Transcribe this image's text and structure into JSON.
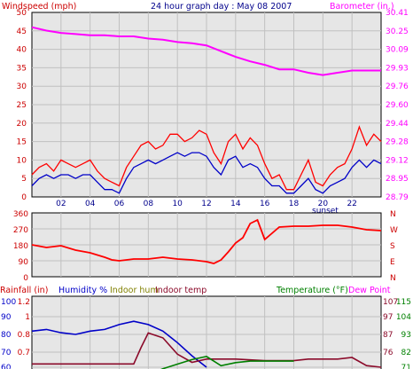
{
  "colors": {
    "panel_bg": "#e6e6e6",
    "grid": "#c0c0c0",
    "wind_gust": "#ff0000",
    "wind_avg": "#0000c8",
    "barometer": "#ff00ff",
    "direction": "#ff0000",
    "humidity": "#0000c8",
    "indoor_hum": "#808000",
    "indoor_temp": "#8b0a2a",
    "temperature": "#008000",
    "dew_point": "#ff00ff",
    "rainfall": "#ff0000"
  },
  "header": {
    "title": "24 hour graph day : May 08 2007",
    "left_label": "Windspeed (mph)",
    "right_label": "Barometer (in.)"
  },
  "bottom_header": {
    "rainfall": "Rainfall (in)",
    "humidity": "Humidity %",
    "indoor_hum": "Indoor hum",
    "indoor_temp": "Indoor temp",
    "temperature": "Temperature (°F)",
    "dew_point": "Dew Point"
  },
  "chart_data": [
    {
      "type": "line",
      "xlim": [
        0,
        24
      ],
      "x_ticks": [
        "02",
        "04",
        "06",
        "08",
        "10",
        "12",
        "14",
        "16",
        "18",
        "20",
        "22"
      ],
      "annotation": "sunset",
      "annotation_x": 20,
      "left_axis": {
        "label": "Windspeed (mph)",
        "ylim": [
          0,
          50
        ],
        "ticks": [
          "50",
          "45",
          "40",
          "35",
          "30",
          "25",
          "20",
          "15",
          "10",
          "5",
          "0"
        ]
      },
      "right_axis": {
        "label": "Barometer (in.)",
        "ylim": [
          28.79,
          30.41
        ],
        "ticks": [
          "30.41",
          "30.25",
          "30.09",
          "29.93",
          "29.76",
          "29.60",
          "29.44",
          "29.28",
          "29.12",
          "28.95",
          "28.79"
        ]
      },
      "series": [
        {
          "name": "Barometer (in.)",
          "axis": "right",
          "x": [
            0,
            1,
            2,
            3,
            4,
            5,
            6,
            7,
            8,
            9,
            10,
            11,
            12,
            13,
            14,
            15,
            16,
            17,
            18,
            19,
            20,
            21,
            22,
            23,
            24
          ],
          "values": [
            30.28,
            30.25,
            30.23,
            30.22,
            30.21,
            30.21,
            30.2,
            30.2,
            30.18,
            30.17,
            30.15,
            30.14,
            30.12,
            30.07,
            30.02,
            29.98,
            29.95,
            29.91,
            29.91,
            29.88,
            29.86,
            29.88,
            29.9,
            29.9,
            29.9
          ]
        },
        {
          "name": "Wind gust (mph)",
          "axis": "left",
          "x": [
            0,
            0.5,
            1,
            1.5,
            2,
            2.5,
            3,
            3.5,
            4,
            4.5,
            5,
            5.5,
            6,
            6.5,
            7,
            7.5,
            8,
            8.5,
            9,
            9.5,
            10,
            10.5,
            11,
            11.5,
            12,
            12.5,
            13,
            13.5,
            14,
            14.5,
            15,
            15.5,
            16,
            16.5,
            17,
            17.5,
            18,
            18.5,
            19,
            19.5,
            20,
            20.5,
            21,
            21.5,
            22,
            22.5,
            23,
            23.5,
            24
          ],
          "values": [
            6,
            8,
            9,
            7,
            10,
            9,
            8,
            9,
            10,
            7,
            5,
            4,
            3,
            8,
            11,
            14,
            15,
            13,
            14,
            17,
            17,
            15,
            16,
            18,
            17,
            12,
            9,
            15,
            17,
            13,
            16,
            14,
            9,
            5,
            6,
            2,
            2,
            6,
            10,
            4,
            3,
            6,
            8,
            9,
            13,
            19,
            14,
            17,
            15
          ]
        },
        {
          "name": "Wind average (mph)",
          "axis": "left",
          "x": [
            0,
            0.5,
            1,
            1.5,
            2,
            2.5,
            3,
            3.5,
            4,
            4.5,
            5,
            5.5,
            6,
            6.5,
            7,
            7.5,
            8,
            8.5,
            9,
            9.5,
            10,
            10.5,
            11,
            11.5,
            12,
            12.5,
            13,
            13.5,
            14,
            14.5,
            15,
            15.5,
            16,
            16.5,
            17,
            17.5,
            18,
            18.5,
            19,
            19.5,
            20,
            20.5,
            21,
            21.5,
            22,
            22.5,
            23,
            23.5,
            24
          ],
          "values": [
            3,
            5,
            6,
            5,
            6,
            6,
            5,
            6,
            6,
            4,
            2,
            2,
            1,
            5,
            8,
            9,
            10,
            9,
            10,
            11,
            12,
            11,
            12,
            12,
            11,
            8,
            6,
            10,
            11,
            8,
            9,
            8,
            5,
            3,
            3,
            1,
            1,
            3,
            5,
            2,
            1,
            3,
            4,
            5,
            8,
            10,
            8,
            10,
            9
          ]
        }
      ]
    },
    {
      "type": "line",
      "xlim": [
        0,
        24
      ],
      "left_axis": {
        "ylim": [
          0,
          360
        ],
        "ticks": [
          "360",
          "270",
          "180",
          "90",
          "0"
        ]
      },
      "right_axis": {
        "ticks": [
          "N",
          "W",
          "S",
          "E",
          "N"
        ]
      },
      "series": [
        {
          "name": "Wind direction",
          "x": [
            0,
            1,
            2,
            3,
            4,
            5,
            5.5,
            6,
            6.5,
            7,
            8,
            9,
            10,
            11,
            12,
            12.5,
            13,
            13.5,
            14,
            14.5,
            15,
            15.5,
            16,
            17,
            18,
            19,
            20,
            21,
            22,
            23,
            24
          ],
          "values": [
            180,
            165,
            175,
            150,
            135,
            110,
            95,
            90,
            95,
            100,
            100,
            110,
            100,
            95,
            85,
            75,
            95,
            140,
            190,
            220,
            300,
            320,
            210,
            280,
            285,
            285,
            290,
            290,
            280,
            265,
            260
          ]
        }
      ]
    },
    {
      "type": "line",
      "xlim": [
        0,
        24
      ],
      "rainfall_axis": {
        "label": "Rainfall (in)",
        "ticks": [
          "1.2",
          "1",
          "0.8",
          "0.7"
        ]
      },
      "humidity_axis": {
        "label": "Humidity %",
        "ticks": [
          "100",
          "90",
          "80",
          "70",
          "60"
        ]
      },
      "indoor_temp_axis": {
        "ticks": [
          "107",
          "97",
          "87",
          "76"
        ]
      },
      "temperature_axis": {
        "label": "Temperature (°F)",
        "ticks": [
          "115",
          "104",
          "93",
          "82",
          "71"
        ]
      },
      "series": [
        {
          "name": "Humidity %",
          "x": [
            0,
            1,
            2,
            3,
            4,
            5,
            6,
            7,
            8,
            9,
            10,
            11,
            12
          ],
          "values": [
            82,
            83,
            81,
            80,
            82,
            83,
            86,
            88,
            86,
            82,
            75,
            67,
            60
          ]
        },
        {
          "name": "Indoor temp",
          "x": [
            0,
            2,
            4,
            6,
            7,
            7.5,
            8,
            9,
            10,
            11,
            12,
            14,
            16,
            18,
            19,
            20,
            21,
            22,
            23,
            24
          ],
          "values": [
            78,
            78,
            78,
            78,
            78,
            88,
            97,
            94,
            84,
            79,
            81,
            81,
            80,
            80,
            81,
            81,
            81,
            82,
            77,
            76
          ]
        },
        {
          "name": "Temperature (°F)",
          "x": [
            8,
            9,
            10,
            11,
            12,
            12.5,
            13,
            14,
            15,
            16,
            17,
            18
          ],
          "values": [
            66,
            70,
            73,
            76,
            78,
            75,
            72,
            74,
            75,
            75,
            75,
            75
          ]
        }
      ]
    }
  ]
}
